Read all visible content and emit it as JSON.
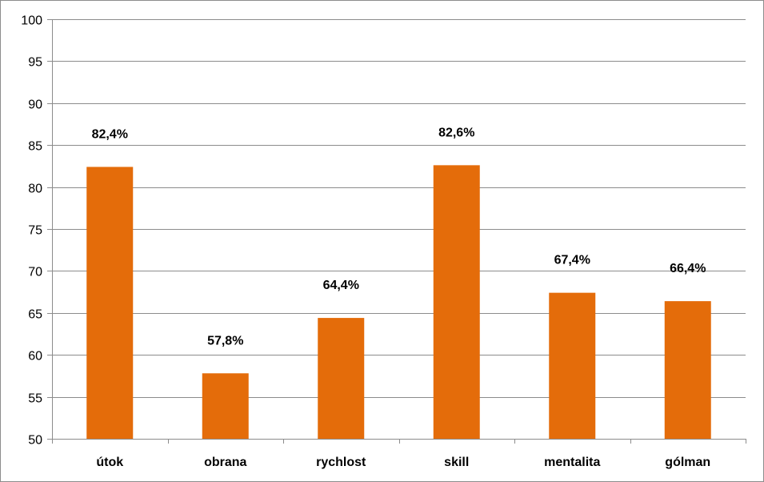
{
  "chart_data": {
    "type": "bar",
    "categories": [
      "útok",
      "obrana",
      "rychlost",
      "skill",
      "mentalita",
      "gólman"
    ],
    "values": [
      82.4,
      57.8,
      64.4,
      82.6,
      67.4,
      66.4
    ],
    "data_labels": [
      "82,4%",
      "57,8%",
      "64,4%",
      "82,6%",
      "67,4%",
      "66,4%"
    ],
    "ylim": [
      50,
      100
    ],
    "yticks": [
      50,
      55,
      60,
      65,
      70,
      75,
      80,
      85,
      90,
      95,
      100
    ],
    "grid": true,
    "bar_color": "#e46c0a",
    "grid_color": "#8c8c8c"
  }
}
